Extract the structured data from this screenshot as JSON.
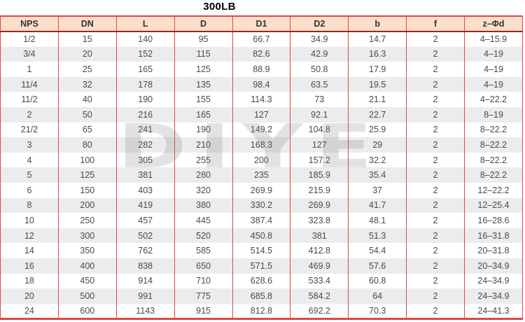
{
  "title": "300LB",
  "watermark": "DIYE",
  "colors": {
    "accent_red": "#e24646",
    "header_bg": "#fbdfca",
    "header_rule": "#8e2b2b",
    "stripe": "#ececec",
    "text": "#4a4a4a",
    "title_color": "#000000"
  },
  "table": {
    "columns": [
      "NPS",
      "DN",
      "L",
      "D",
      "D1",
      "D2",
      "b",
      "f",
      "z–Φd"
    ],
    "rows": [
      [
        "1/2",
        "15",
        "140",
        "95",
        "66.7",
        "34.9",
        "14.7",
        "2",
        "4–15.9"
      ],
      [
        "3/4",
        "20",
        "152",
        "115",
        "82.6",
        "42.9",
        "16.3",
        "2",
        "4–19"
      ],
      [
        "1",
        "25",
        "165",
        "125",
        "88.9",
        "50.8",
        "17.9",
        "2",
        "4–19"
      ],
      [
        "11/4",
        "32",
        "178",
        "135",
        "98.4",
        "63.5",
        "19.5",
        "2",
        "4–19"
      ],
      [
        "11/2",
        "40",
        "190",
        "155",
        "114.3",
        "73",
        "21.1",
        "2",
        "4–22.2"
      ],
      [
        "2",
        "50",
        "216",
        "165",
        "127",
        "92.1",
        "22.7",
        "2",
        "8–19"
      ],
      [
        "21/2",
        "65",
        "241",
        "190",
        "149.2",
        "104.8",
        "25.9",
        "2",
        "8–22.2"
      ],
      [
        "3",
        "80",
        "282",
        "210",
        "168.3",
        "127",
        "29",
        "2",
        "8–22.2"
      ],
      [
        "4",
        "100",
        "305",
        "255",
        "200",
        "157.2",
        "32.2",
        "2",
        "8–22.2"
      ],
      [
        "5",
        "125",
        "381",
        "280",
        "235",
        "185.9",
        "35.4",
        "2",
        "8–22.2"
      ],
      [
        "6",
        "150",
        "403",
        "320",
        "269.9",
        "215.9",
        "37",
        "2",
        "12–22.2"
      ],
      [
        "8",
        "200",
        "419",
        "380",
        "330.2",
        "269.9",
        "41.7",
        "2",
        "12–25.4"
      ],
      [
        "10",
        "250",
        "457",
        "445",
        "387.4",
        "323.8",
        "48.1",
        "2",
        "16–28.6"
      ],
      [
        "12",
        "300",
        "502",
        "520",
        "450.8",
        "381",
        "51.3",
        "2",
        "16–31.8"
      ],
      [
        "14",
        "350",
        "762",
        "585",
        "514.5",
        "412.8",
        "54.4",
        "2",
        "20–31.8"
      ],
      [
        "16",
        "400",
        "838",
        "650",
        "571.5",
        "469.9",
        "57.6",
        "2",
        "20–34.9"
      ],
      [
        "18",
        "450",
        "914",
        "710",
        "628.6",
        "533.4",
        "60.8",
        "2",
        "24–34.9"
      ],
      [
        "20",
        "500",
        "991",
        "775",
        "685.8",
        "584.2",
        "64",
        "2",
        "24–34.9"
      ],
      [
        "24",
        "600",
        "1143",
        "915",
        "812.8",
        "692.2",
        "70.3",
        "2",
        "24–41.3"
      ]
    ]
  }
}
